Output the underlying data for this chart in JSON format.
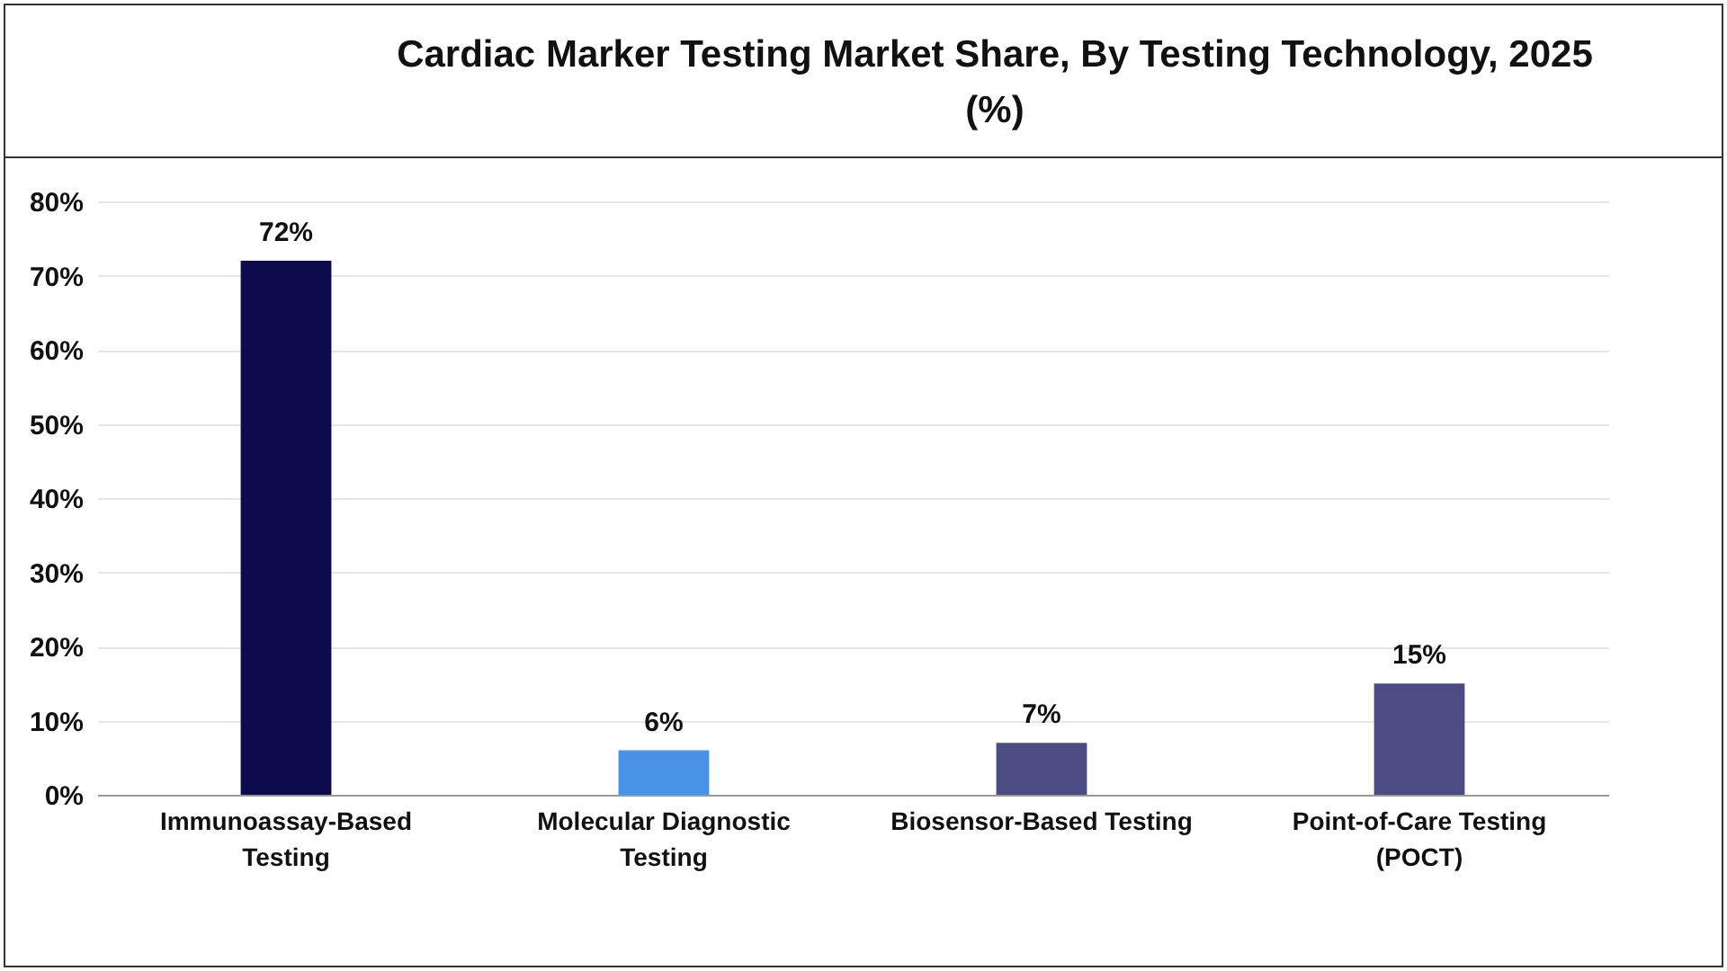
{
  "chart_data": {
    "type": "bar",
    "title": "Cardiac Marker Testing Market Share, By Testing Technology, 2025 (%)",
    "categories": [
      "Immunoassay-Based Testing",
      "Molecular Diagnostic Testing",
      "Biosensor-Based Testing",
      "Point-of-Care Testing (POCT)"
    ],
    "values": [
      72,
      6,
      7,
      15
    ],
    "colors": [
      "#0b0b4e",
      "#4a92e6",
      "#4a4c82",
      "#4a4c82"
    ],
    "value_labels": [
      "72%",
      "6%",
      "7%",
      "15%"
    ],
    "ylim": [
      0,
      80
    ],
    "yticks": [
      {
        "value": 0,
        "label": "0%"
      },
      {
        "value": 10,
        "label": "10%"
      },
      {
        "value": 20,
        "label": "20%"
      },
      {
        "value": 30,
        "label": "30%"
      },
      {
        "value": 40,
        "label": "40%"
      },
      {
        "value": 50,
        "label": "50%"
      },
      {
        "value": 60,
        "label": "60%"
      },
      {
        "value": 70,
        "label": "70%"
      },
      {
        "value": 80,
        "label": "80%"
      }
    ],
    "grid": "y",
    "legend": false
  }
}
